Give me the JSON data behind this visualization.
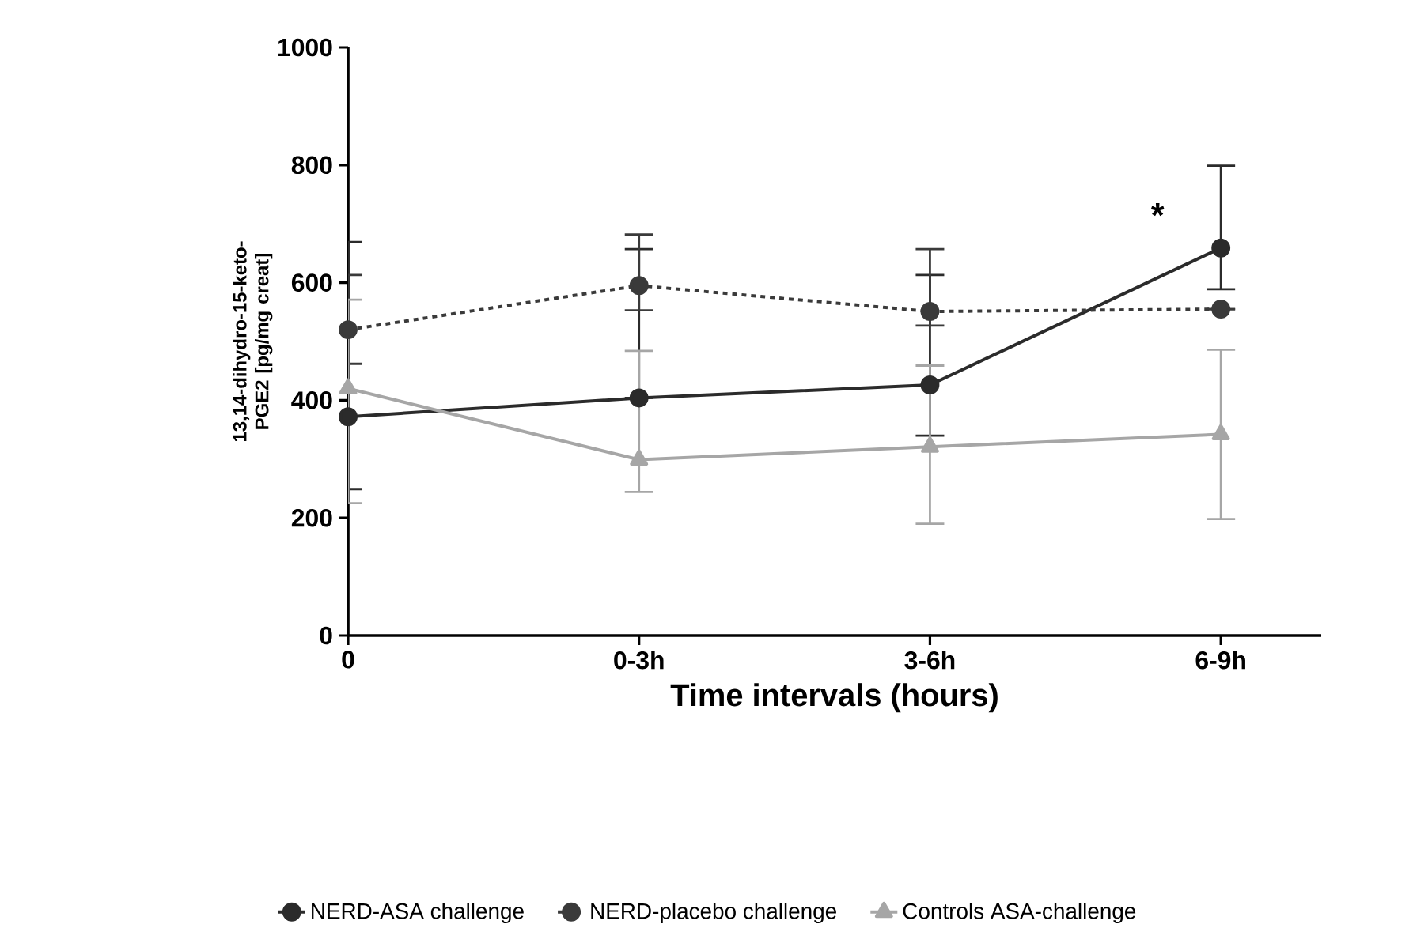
{
  "chart_data": {
    "type": "line",
    "xlabel": "Time intervals (hours)",
    "ylabel": "13,14-dihydro-15-keto-PGE2 [pg/mg creat]",
    "categories": [
      "0",
      "0-3h",
      "3-6h",
      "6-9h"
    ],
    "ylim": [
      0,
      1000
    ],
    "yticks": [
      0,
      200,
      400,
      600,
      800,
      1000
    ],
    "grid": false,
    "legend": "bottom",
    "series": [
      {
        "name": "NERD-ASA challenge",
        "color": "#2b2b2b",
        "marker": "circle",
        "line_style": "solid",
        "values": [
          372,
          404,
          426,
          659
        ],
        "errors": [
          [
            249,
            669
          ],
          [
            404,
            657
          ],
          [
            340,
            613
          ],
          [
            589,
            799
          ]
        ]
      },
      {
        "name": "NERD-placebo challenge",
        "color": "#3a3a3a",
        "marker": "circle",
        "line_style": "dashed",
        "values": [
          520,
          595,
          551,
          555
        ],
        "errors": [
          [
            462,
            613
          ],
          [
            553,
            682
          ],
          [
            527,
            657
          ],
          null
        ]
      },
      {
        "name": "Controls ASA-challenge",
        "color": "#a6a6a6",
        "marker": "triangle",
        "line_style": "solid",
        "values": [
          420,
          299,
          321,
          342
        ],
        "errors": [
          [
            225,
            571
          ],
          [
            244,
            484
          ],
          [
            190,
            459
          ],
          [
            198,
            486
          ]
        ]
      }
    ],
    "annotations": [
      {
        "text": "*",
        "x": "6-9h",
        "y": 715
      }
    ]
  }
}
